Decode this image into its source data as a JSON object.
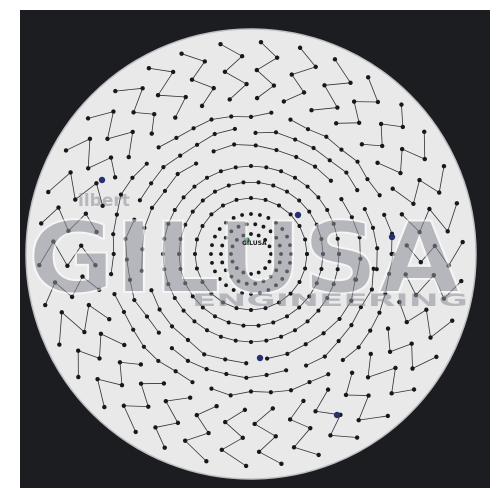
{
  "colors": {
    "frame": "#ffffff",
    "backdrop": "#1c1d21",
    "board": "#e9e9ea",
    "board_edge": "#bfc0c3",
    "trace": "#2f3236",
    "pixel": "#17181b",
    "accent_pixel": "#26306e",
    "center_pixel": "#1e6b3a",
    "wm_gray": "#8c9097",
    "wm_red": "#c4615c",
    "wm_blue": "#6c86c9"
  },
  "watermark": {
    "prefix": "ilbert",
    "main": "GILUSA",
    "sub": "ENGINEERING"
  },
  "center_label": "GILUSA",
  "icons": {
    "board": "circular-led-board",
    "logo": "gilbert-usa-logo-watermark"
  }
}
